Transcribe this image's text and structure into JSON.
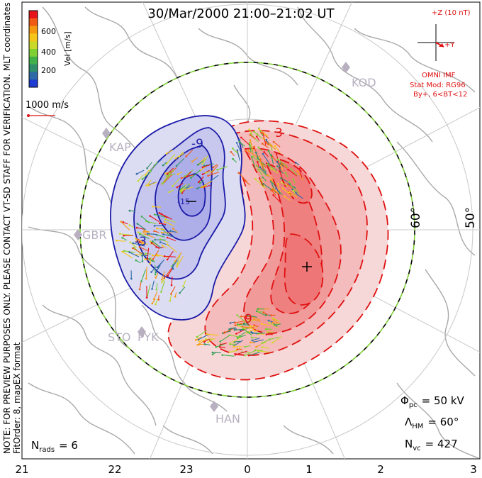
{
  "title": "30/Mar/2000 21:00–21:02 UT",
  "side_note": "NOTE: FOR PREVIEW PURPOSES ONLY. PLEASE CONTACT VT-SD STAFF FOR VERIFICATION.",
  "fit_order": "FitOrder: 8, mapEX format",
  "coords": "MLT coordinates",
  "colorbar": {
    "label": "Vel [m/s]",
    "ticks": [
      "600",
      "400",
      "200"
    ],
    "colors": [
      "#e8141c",
      "#f05a14",
      "#f59a10",
      "#f6c51a",
      "#c9d92a",
      "#7fd035",
      "#3fb04a",
      "#2f8f6a",
      "#2e6aa8",
      "#1e3ccf"
    ]
  },
  "scale_vector": {
    "label": "1000 m/s"
  },
  "imf": {
    "label": "+Z (10 nT)",
    "y_label": "+Y",
    "source": "OMNI IMF",
    "stat_model": "Stat Mod: RG96",
    "condition": "By+, 6<BT<12"
  },
  "stations": [
    "KOD",
    "KAP",
    "GBR",
    "STO",
    "PYK",
    "HAN"
  ],
  "latitude_labels": [
    "60°",
    "50°"
  ],
  "contour_labels": [
    "-9",
    "-3",
    "3",
    "-15",
    "9"
  ],
  "stats": {
    "phi_symbol": "Φ",
    "phi_sub": "pc",
    "phi_value": "= 50 kV",
    "lambda_symbol": "Λ",
    "lambda_sub": "HM",
    "lambda_value": "= 60°",
    "nvc_symbol": "N",
    "nvc_sub": "vc",
    "nvc_value": "= 427",
    "nrads_symbol": "N",
    "nrads_sub": "rads",
    "nrads_value": "= 6"
  },
  "mlt_ticks": [
    "21",
    "22",
    "23",
    "0",
    "1",
    "2",
    "3"
  ],
  "colors": {
    "negative": "#1a1aa8",
    "positive": "#e01010",
    "hm_boundary": "#7fd035"
  }
}
